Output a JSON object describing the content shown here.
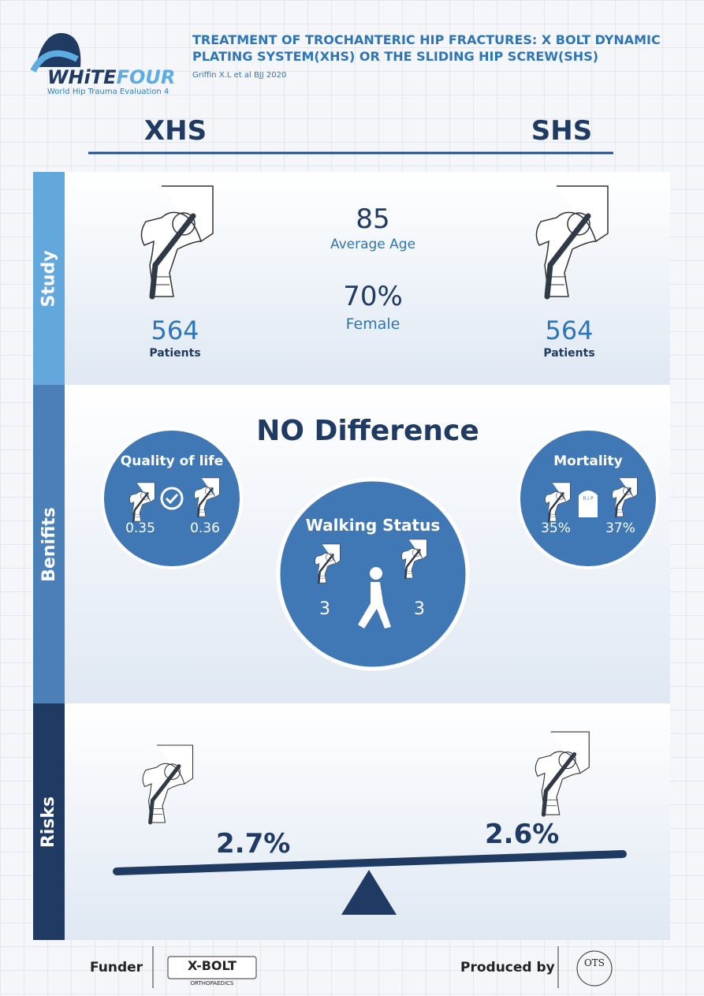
{
  "logo": {
    "name_a": "WHiTE",
    "name_b": "FOUR",
    "subtitle": "World Hip Trauma Evaluation 4"
  },
  "header": {
    "title": "TREATMENT OF TROCHANTERIC HIP FRACTURES: X BOLT DYNAMIC PLATING SYSTEM(XHS) OR THE SLIDING HIP SCREW(SHS)",
    "citation": "Griffin X.L et al BJJ 2020"
  },
  "columns": {
    "left": "XHS",
    "right": "SHS"
  },
  "study": {
    "label": "Study",
    "left_count": "564",
    "left_unit": "Patients",
    "right_count": "564",
    "right_unit": "Patients",
    "age": "85",
    "age_label": "Average Age",
    "female": "70%",
    "female_label": "Female"
  },
  "benefits": {
    "label": "Benifits",
    "headline": "NO Difference",
    "quality": {
      "title": "Quality of life",
      "xhs": "0.35",
      "shs": "0.36"
    },
    "walking": {
      "title": "Walking Status",
      "xhs": "3",
      "shs": "3"
    },
    "mortality": {
      "title": "Mortality",
      "icon_text": "R.I.P",
      "xhs": "35%",
      "shs": "37%"
    }
  },
  "risks": {
    "label": "Risks",
    "xhs": "2.7%",
    "shs": "2.6%"
  },
  "footer": {
    "funder": "Funder",
    "funder_logo": "X-BOLT",
    "funder_logo_sub": "ORTHOPAEDICS",
    "produced_by": "Produced by",
    "producer_logo": "OTS"
  }
}
